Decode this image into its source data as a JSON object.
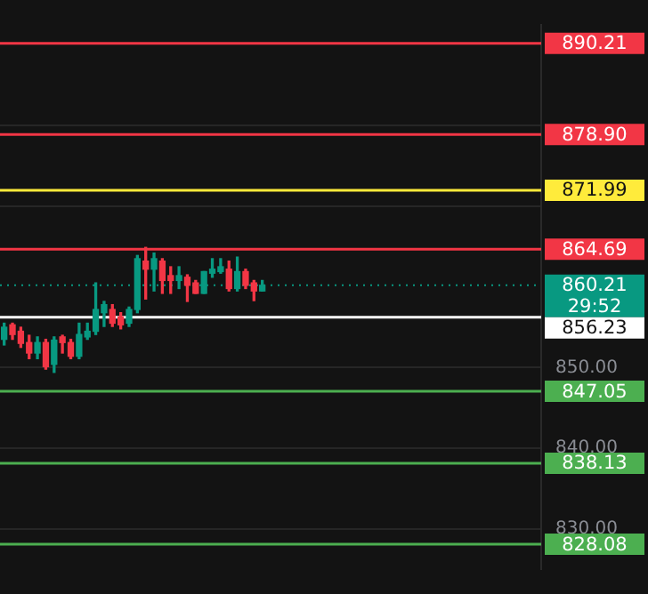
{
  "chart_data": {
    "type": "candlestick",
    "categories": [
      null,
      null,
      null,
      null,
      null,
      null,
      null,
      null,
      null,
      null,
      null,
      null,
      null,
      null,
      null,
      null,
      null,
      null,
      null,
      null,
      null,
      null,
      null,
      null,
      null,
      null,
      null,
      null,
      null,
      null,
      null,
      null,
      null,
      null,
      null,
      null,
      null,
      null,
      null,
      null,
      null,
      null,
      null,
      null,
      null,
      null,
      null,
      null,
      null,
      null,
      null,
      null,
      null,
      null,
      null,
      null,
      null,
      null,
      null,
      null,
      null,
      null,
      null,
      null,
      null
    ],
    "ohlc": [
      [
        853.5,
        855.5,
        852.8,
        855.0
      ],
      [
        855.3,
        855.5,
        853.5,
        854.1
      ],
      [
        854.5,
        855.0,
        852.5,
        853.0
      ],
      [
        853.1,
        854.0,
        851.1,
        851.8
      ],
      [
        851.8,
        853.8,
        851.1,
        853.1
      ],
      [
        853.1,
        853.5,
        849.8,
        850.1
      ],
      [
        850.4,
        853.8,
        849.4,
        853.4
      ],
      [
        853.8,
        854.0,
        851.8,
        853.1
      ],
      [
        853.1,
        853.5,
        851.1,
        851.4
      ],
      [
        851.4,
        855.5,
        851.1,
        854.1
      ],
      [
        853.8,
        855.5,
        853.5,
        854.5
      ],
      [
        854.5,
        860.5,
        854.1,
        857.2
      ],
      [
        856.8,
        858.2,
        855.1,
        857.8
      ],
      [
        857.2,
        857.8,
        855.1,
        855.5
      ],
      [
        856.3,
        856.8,
        854.8,
        855.3
      ],
      [
        855.5,
        857.5,
        855.1,
        857.2
      ],
      [
        857.2,
        863.9,
        856.8,
        863.5
      ],
      [
        863.2,
        864.9,
        858.5,
        862.2
      ],
      [
        862.2,
        864.2,
        859.5,
        863.5
      ],
      [
        863.2,
        863.5,
        859.2,
        860.8
      ],
      [
        861.4,
        862.5,
        859.2,
        860.8
      ],
      [
        860.8,
        862.5,
        859.8,
        861.4
      ],
      [
        861.2,
        861.5,
        858.2,
        860.2
      ],
      [
        860.5,
        860.8,
        859.2,
        859.2
      ],
      [
        859.2,
        861.9,
        859.2,
        861.9
      ],
      [
        861.7,
        863.5,
        861.2,
        862.2
      ],
      [
        861.9,
        863.5,
        861.7,
        862.5
      ],
      [
        862.2,
        863.2,
        859.5,
        859.8
      ],
      [
        859.8,
        863.7,
        859.5,
        861.9
      ],
      [
        861.9,
        862.2,
        859.8,
        860.2
      ],
      [
        860.5,
        860.8,
        858.3,
        859.5
      ],
      [
        859.5,
        860.8,
        859.5,
        860.2
      ],
      null,
      null,
      null,
      null,
      null,
      null,
      null,
      null,
      null,
      null,
      null,
      null,
      null,
      null,
      null,
      null,
      null,
      null,
      null,
      null,
      null,
      null,
      null,
      null,
      null,
      null,
      null,
      null,
      null,
      null,
      null,
      null,
      null
    ],
    "colors": [
      "#089981",
      "#f23645",
      "#f23645",
      "#f23645",
      "#089981",
      "#f23645",
      "#089981",
      "#f23645",
      "#f23645",
      "#089981",
      "#089981",
      "#089981",
      "#089981",
      "#f23645",
      "#f23645",
      "#089981",
      "#089981",
      "#f23645",
      "#089981",
      "#f23645",
      "#f23645",
      "#089981",
      "#f23645",
      "#f23645",
      "#089981",
      "#089981",
      "#089981",
      "#f23645",
      "#089981",
      "#f23645",
      "#f23645",
      "#089981",
      null,
      null,
      null,
      null,
      null,
      null,
      null,
      null,
      null,
      null,
      null,
      null,
      null,
      null,
      null,
      null,
      null,
      null,
      null,
      null,
      null,
      null,
      null,
      null,
      null,
      null,
      null,
      null,
      null,
      null,
      null,
      null,
      null
    ],
    "ylim": [
      825,
      892.5
    ],
    "yticks": [
      {
        "value": 830,
        "label": "830.00"
      },
      {
        "value": 840,
        "label": "840.00"
      },
      {
        "value": 850,
        "label": "850.00"
      },
      {
        "value": 870,
        "label": null
      },
      {
        "value": 880,
        "label": null
      }
    ],
    "grid": "y",
    "tick_labels": "y",
    "legend": false,
    "ref_lines": [
      {
        "axis": "y",
        "value": 890.21,
        "label": "890.21",
        "color": "#f23645"
      },
      {
        "axis": "y",
        "value": 878.9,
        "label": "878.90",
        "color": "#f23645"
      },
      {
        "axis": "y",
        "value": 871.99,
        "label": "871.99",
        "color": "#ffeb3b"
      },
      {
        "axis": "y",
        "value": 864.69,
        "label": "864.69",
        "color": "#f23645"
      },
      {
        "axis": "y",
        "value": 860.21,
        "label": "860.21",
        "color": "#089981",
        "line_style": "dotted"
      },
      {
        "axis": "y",
        "value": 856.23,
        "label": "856.23",
        "color": "#ffffff"
      },
      {
        "axis": "y",
        "value": 847.05,
        "label": "847.05",
        "color": "#4caf50"
      },
      {
        "axis": "y",
        "value": 838.13,
        "label": "838.13",
        "color": "#4caf50"
      },
      {
        "axis": "y",
        "value": 828.08,
        "label": "828.08",
        "color": "#4caf50"
      }
    ],
    "annotations": [
      "29:52"
    ]
  }
}
